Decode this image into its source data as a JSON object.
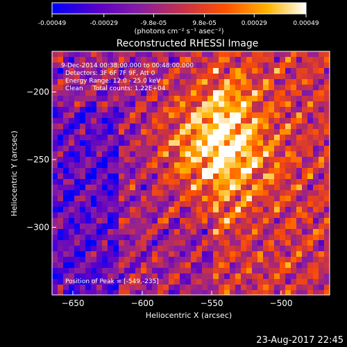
{
  "colorbar": {
    "tick_labels": [
      "-0.00049",
      "-0.00029",
      "-9.8e-05",
      "9.8e-05",
      "0.00029",
      "0.00049"
    ],
    "tick_values": [
      -0.00049,
      -0.00029,
      -9.8e-05,
      9.8e-05,
      0.00029,
      0.00049
    ],
    "range": [
      -0.00049,
      0.00049
    ],
    "units_label": "(photons cm⁻² s⁻¹ asec⁻²)",
    "colormap": [
      "#0000ff",
      "#5a00c8",
      "#8a1ea0",
      "#c83246",
      "#ff5000",
      "#ffb400",
      "#ffffff"
    ]
  },
  "chart_data": {
    "type": "heatmap",
    "title": "Reconstructed RHESSI Image",
    "xlabel": "Heliocentric X (arcsec)",
    "ylabel": "Heliocentric Y (arcsec)",
    "xlim": [
      -665,
      -465
    ],
    "ylim": [
      -350,
      -170
    ],
    "x_ticks": [
      -650,
      -600,
      -550,
      -500
    ],
    "x_tick_labels": [
      "−650",
      "−600",
      "−550",
      "−500"
    ],
    "y_ticks": [
      -200,
      -250,
      -300
    ],
    "y_tick_labels": [
      "−200",
      "−250",
      "−300"
    ],
    "grid": false,
    "annotations": [
      "9-Dec-2014 00:38:00.000 to 00:48:00.000",
      "Detectors: 3F 6F 7F 9F, Att 0",
      "Energy Range: 12.0 - 25.0 keV",
      "Clean     Total counts: 1.22E+04"
    ],
    "peak_label": "Position of Peak = [-549,-235]",
    "peak_position": [
      -549,
      -235
    ],
    "total_counts": 12200,
    "energy_range_keV": [
      12.0,
      25.0
    ]
  },
  "footer": {
    "timestamp": "23-Aug-2017 22:45"
  }
}
